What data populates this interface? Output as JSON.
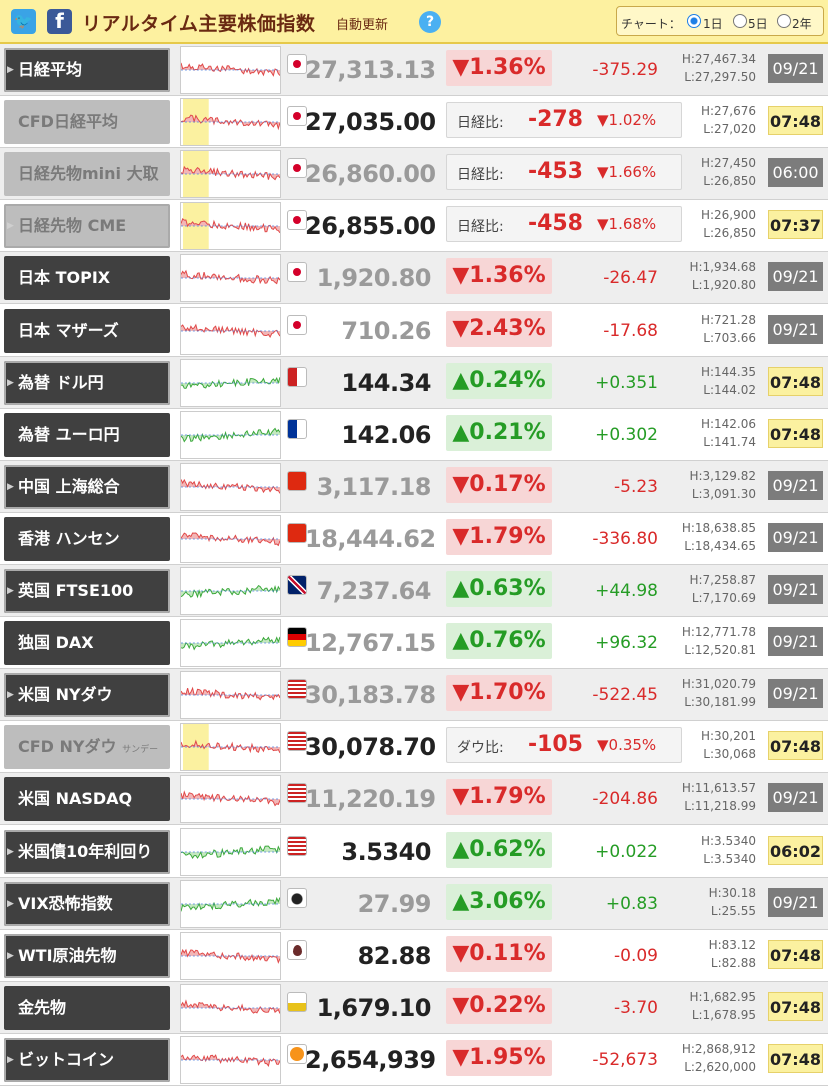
{
  "header": {
    "twitter_icon_glyph": "🐦",
    "facebook_icon_glyph": "f",
    "title": "リアルタイム主要株価指数",
    "auto_update": "自動更新",
    "help": "?",
    "chart_label": "チャート：",
    "chart_options": [
      "1日",
      "5日",
      "2年"
    ],
    "chart_selected": "1日"
  },
  "rows": [
    {
      "name": "日経平均",
      "kind": "pct",
      "dir": "dn",
      "price": "27,313.13",
      "price_dim": true,
      "pct": "▼1.36%",
      "chg": "-375.29",
      "high": "H:27,467.34",
      "low": "L:27,297.50",
      "time": "09/21",
      "time_kind": "old",
      "flag": "jp",
      "nav": true
    },
    {
      "name": "CFD日経平均",
      "kind": "cmp",
      "dir": "dn",
      "price": "27,035.00",
      "price_dim": false,
      "cmp_label": "日経比:",
      "cmp_num": "-278",
      "cmp_pct": "▼1.02%",
      "high": "H:27,676",
      "low": "L:27,020",
      "time": "07:48",
      "time_kind": "new",
      "flag": "jp",
      "nav": false,
      "cfd": true
    },
    {
      "name": "日経先物mini 大取",
      "kind": "cmp",
      "dir": "dn",
      "price": "26,860.00",
      "price_dim": true,
      "cmp_label": "日経比:",
      "cmp_num": "-453",
      "cmp_pct": "▼1.66%",
      "high": "H:27,450",
      "low": "L:26,850",
      "time": "06:00",
      "time_kind": "old",
      "flag": "jp",
      "nav": false,
      "cfd": true
    },
    {
      "name": "日経先物 CME",
      "kind": "cmp",
      "dir": "dn",
      "price": "26,855.00",
      "price_dim": false,
      "cmp_label": "日経比:",
      "cmp_num": "-458",
      "cmp_pct": "▼1.68%",
      "high": "H:26,900",
      "low": "L:26,850",
      "time": "07:37",
      "time_kind": "new",
      "flag": "jp",
      "nav": true,
      "cfd": true
    },
    {
      "name": "日本 TOPIX",
      "kind": "pct",
      "dir": "dn",
      "price": "1,920.80",
      "price_dim": true,
      "pct": "▼1.36%",
      "chg": "-26.47",
      "high": "H:1,934.68",
      "low": "L:1,920.80",
      "time": "09/21",
      "time_kind": "old",
      "flag": "jp",
      "nav": false
    },
    {
      "name": "日本 マザーズ",
      "kind": "pct",
      "dir": "dn",
      "price": "710.26",
      "price_dim": true,
      "pct": "▼2.43%",
      "chg": "-17.68",
      "high": "H:721.28",
      "low": "L:703.66",
      "time": "09/21",
      "time_kind": "old",
      "flag": "jp",
      "nav": false
    },
    {
      "name": "為替 ドル円",
      "kind": "pct",
      "dir": "up",
      "price": "144.34",
      "price_dim": false,
      "pct": "▲0.24%",
      "chg": "+0.351",
      "high": "H:144.35",
      "low": "L:144.02",
      "time": "07:48",
      "time_kind": "new",
      "flag": "usjp",
      "nav": true
    },
    {
      "name": "為替 ユーロ円",
      "kind": "pct",
      "dir": "up",
      "price": "142.06",
      "price_dim": false,
      "pct": "▲0.21%",
      "chg": "+0.302",
      "high": "H:142.06",
      "low": "L:141.74",
      "time": "07:48",
      "time_kind": "new",
      "flag": "eujp",
      "nav": false
    },
    {
      "name": "中国 上海総合",
      "kind": "pct",
      "dir": "dn",
      "price": "3,117.18",
      "price_dim": true,
      "pct": "▼0.17%",
      "chg": "-5.23",
      "high": "H:3,129.82",
      "low": "L:3,091.30",
      "time": "09/21",
      "time_kind": "old",
      "flag": "cn",
      "nav": true
    },
    {
      "name": "香港 ハンセン",
      "kind": "pct",
      "dir": "dn",
      "price": "18,444.62",
      "price_dim": true,
      "pct": "▼1.79%",
      "chg": "-336.80",
      "high": "H:18,638.85",
      "low": "L:18,434.65",
      "time": "09/21",
      "time_kind": "old",
      "flag": "hk",
      "nav": false
    },
    {
      "name": "英国 FTSE100",
      "kind": "pct",
      "dir": "up",
      "price": "7,237.64",
      "price_dim": true,
      "pct": "▲0.63%",
      "chg": "+44.98",
      "high": "H:7,258.87",
      "low": "L:7,170.69",
      "time": "09/21",
      "time_kind": "old",
      "flag": "uk",
      "nav": true
    },
    {
      "name": "独国 DAX",
      "kind": "pct",
      "dir": "up",
      "price": "12,767.15",
      "price_dim": true,
      "pct": "▲0.76%",
      "chg": "+96.32",
      "high": "H:12,771.78",
      "low": "L:12,520.81",
      "time": "09/21",
      "time_kind": "old",
      "flag": "de",
      "nav": false
    },
    {
      "name": "米国 NYダウ",
      "kind": "pct",
      "dir": "dn",
      "price": "30,183.78",
      "price_dim": true,
      "pct": "▼1.70%",
      "chg": "-522.45",
      "high": "H:31,020.79",
      "low": "L:30,181.99",
      "time": "09/21",
      "time_kind": "old",
      "flag": "us",
      "nav": true
    },
    {
      "name": "CFD NYダウ",
      "name_small": "サンデー",
      "kind": "cmp",
      "dir": "dn",
      "price": "30,078.70",
      "price_dim": false,
      "cmp_label": "ダウ比:",
      "cmp_num": "-105",
      "cmp_pct": "▼0.35%",
      "high": "H:30,201",
      "low": "L:30,068",
      "time": "07:48",
      "time_kind": "new",
      "flag": "us",
      "nav": false,
      "cfd": true
    },
    {
      "name": "米国 NASDAQ",
      "kind": "pct",
      "dir": "dn",
      "price": "11,220.19",
      "price_dim": true,
      "pct": "▼1.79%",
      "chg": "-204.86",
      "high": "H:11,613.57",
      "low": "L:11,218.99",
      "time": "09/21",
      "time_kind": "old",
      "flag": "us",
      "nav": false
    },
    {
      "name": "米国債10年利回り",
      "kind": "pct",
      "dir": "up",
      "price": "3.5340",
      "price_dim": false,
      "pct": "▲0.62%",
      "chg": "+0.022",
      "high": "H:3.5340",
      "low": "L:3.5340",
      "time": "06:02",
      "time_kind": "new",
      "flag": "us",
      "nav": true
    },
    {
      "name": "VIX恐怖指数",
      "kind": "pct",
      "dir": "up",
      "price": "27.99",
      "price_dim": true,
      "pct": "▲3.06%",
      "chg": "+0.83",
      "high": "H:30.18",
      "low": "L:25.55",
      "time": "09/21",
      "time_kind": "old",
      "flag": "vix",
      "nav": true
    },
    {
      "name": "WTI原油先物",
      "kind": "pct",
      "dir": "dn",
      "price": "82.88",
      "price_dim": false,
      "pct": "▼0.11%",
      "chg": "-0.09",
      "high": "H:83.12",
      "low": "L:82.88",
      "time": "07:48",
      "time_kind": "new",
      "flag": "oil",
      "nav": true
    },
    {
      "name": "金先物",
      "kind": "pct",
      "dir": "dn",
      "price": "1,679.10",
      "price_dim": false,
      "pct": "▼0.22%",
      "chg": "-3.70",
      "high": "H:1,682.95",
      "low": "L:1,678.95",
      "time": "07:48",
      "time_kind": "new",
      "flag": "gold",
      "nav": false
    },
    {
      "name": "ビットコイン",
      "kind": "pct",
      "dir": "dn",
      "price": "2,654,939",
      "price_dim": false,
      "pct": "▼1.95%",
      "chg": "-52,673",
      "high": "H:2,868,912",
      "low": "L:2,620,000",
      "time": "07:48",
      "time_kind": "new",
      "flag": "btc",
      "nav": true
    }
  ],
  "colors": {
    "header_bg": "#fdf1a0",
    "title": "#6a2a12",
    "down": "#d92a2a",
    "up": "#259c25",
    "down_fill": "#f7d6d6",
    "up_fill": "#daf0d8"
  }
}
